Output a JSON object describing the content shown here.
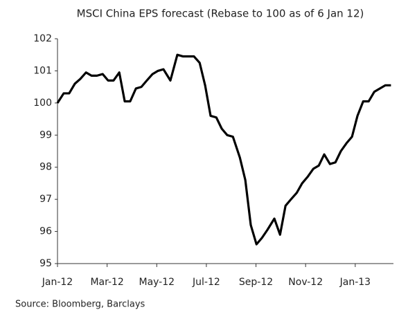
{
  "chart_data": {
    "type": "line",
    "title": "MSCI China EPS forecast (Rebase to 100 as of 6 Jan 12)",
    "source": "Source: Bloomberg, Barclays",
    "color": "#000000",
    "x": [
      0,
      0.25,
      0.47,
      0.7,
      0.92,
      1.15,
      1.37,
      1.59,
      1.82,
      2.04,
      2.26,
      2.49,
      2.71,
      2.93,
      3.16,
      3.38,
      3.6,
      3.83,
      4.05,
      4.27,
      4.55,
      4.83,
      5.06,
      5.28,
      5.5,
      5.73,
      5.95,
      6.17,
      6.4,
      6.62,
      6.84,
      7.07,
      7.35,
      7.57,
      7.79,
      8.02,
      8.24,
      8.46,
      8.74,
      8.97,
      9.19,
      9.41,
      9.64,
      9.86,
      10.08,
      10.31,
      10.53,
      10.75,
      10.98,
      11.2,
      11.42,
      11.65,
      11.87,
      12.09,
      12.32,
      12.54,
      12.77,
      12.99,
      13.21,
      13.44
    ],
    "values": [
      100.0,
      100.3,
      100.3,
      100.6,
      100.75,
      100.95,
      100.85,
      100.85,
      100.9,
      100.7,
      100.7,
      100.95,
      100.05,
      100.05,
      100.45,
      100.5,
      100.7,
      100.9,
      101.0,
      101.05,
      100.7,
      101.5,
      101.45,
      101.45,
      101.45,
      101.25,
      100.55,
      99.6,
      99.55,
      99.2,
      99.0,
      98.95,
      98.3,
      97.6,
      96.2,
      95.6,
      95.8,
      96.05,
      96.4,
      95.9,
      96.8,
      97.0,
      97.2,
      97.5,
      97.7,
      97.95,
      98.05,
      98.4,
      98.1,
      98.15,
      98.5,
      98.75,
      98.95,
      99.6,
      100.05,
      100.05,
      100.35,
      100.45,
      100.55,
      100.55
    ],
    "xlim": [
      0,
      13.54
    ],
    "xticks": [
      {
        "value": 0,
        "label": "Jan-12"
      },
      {
        "value": 2,
        "label": "Mar-12"
      },
      {
        "value": 4,
        "label": "May-12"
      },
      {
        "value": 6,
        "label": "Jul-12"
      },
      {
        "value": 8,
        "label": "Sep-12"
      },
      {
        "value": 10,
        "label": "Nov-12"
      },
      {
        "value": 12,
        "label": "Jan-13"
      }
    ],
    "ylim": [
      95,
      102
    ],
    "yticks": [
      95,
      96,
      97,
      98,
      99,
      100,
      101,
      102
    ],
    "grid": false
  }
}
